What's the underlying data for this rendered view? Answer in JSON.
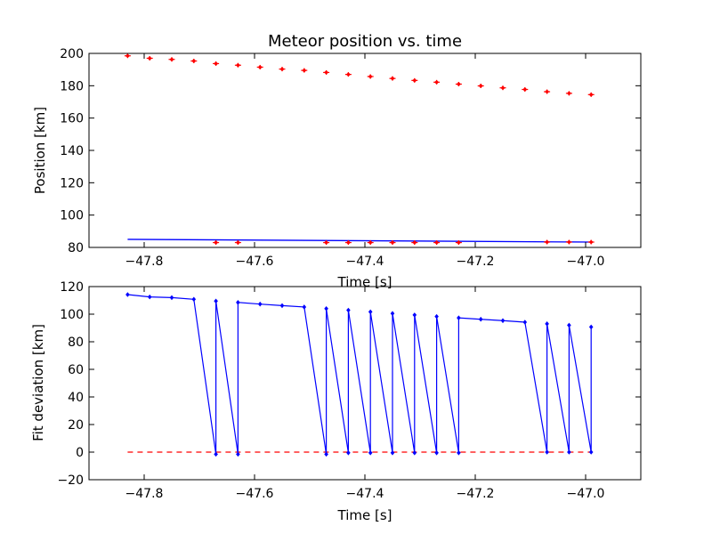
{
  "colors": {
    "observed": "#ff0000",
    "fit": "#0000ff",
    "zero_line": "#ff0000"
  },
  "chart_data": [
    {
      "type": "scatter",
      "title": "Meteor position vs. time",
      "xlabel": "Time [s]",
      "ylabel": "Position [km]",
      "xlim": [
        -47.9,
        -46.9
      ],
      "ylim": [
        80,
        200
      ],
      "xticks": [
        -47.8,
        -47.6,
        -47.4,
        -47.2,
        -47.0
      ],
      "yticks": [
        80,
        100,
        120,
        140,
        160,
        180,
        200
      ],
      "x_tick_labels": [
        "−47.8",
        "−47.6",
        "−47.4",
        "−47.2",
        "−47.0"
      ],
      "y_tick_labels": [
        "80",
        "100",
        "120",
        "140",
        "160",
        "180",
        "200"
      ],
      "grid": false,
      "series": [
        {
          "style": "red errorbar points",
          "x": [
            -47.83,
            -47.79,
            -47.75,
            -47.71,
            -47.67,
            -47.63,
            -47.59,
            -47.55,
            -47.51,
            -47.47,
            -47.43,
            -47.39,
            -47.35,
            -47.31,
            -47.27,
            -47.23,
            -47.19,
            -47.15,
            -47.11,
            -47.07,
            -47.03,
            -46.99
          ],
          "y": [
            198.5,
            197.0,
            196.3,
            195.3,
            193.7,
            192.7,
            191.5,
            190.3,
            189.5,
            188.2,
            187.0,
            185.7,
            184.5,
            183.3,
            182.2,
            181.0,
            179.9,
            178.7,
            177.7,
            176.3,
            175.3,
            174.5
          ]
        },
        {
          "style": "red errorbar points",
          "x": [
            -47.67,
            -47.63,
            -47.47,
            -47.43,
            -47.39,
            -47.35,
            -47.31,
            -47.27,
            -47.23,
            -47.07,
            -47.03,
            -46.99
          ],
          "y": [
            83.0,
            83.0,
            83.0,
            83.0,
            83.0,
            83.0,
            83.0,
            83.0,
            83.0,
            83.3,
            83.3,
            83.3
          ]
        },
        {
          "style": "blue fit line",
          "x": [
            -47.83,
            -46.99
          ],
          "y": [
            85.0,
            83.3
          ]
        }
      ]
    },
    {
      "type": "line",
      "title": "",
      "xlabel": "Time [s]",
      "ylabel": "Fit deviation [km]",
      "xlim": [
        -47.9,
        -46.9
      ],
      "ylim": [
        -20,
        120
      ],
      "xticks": [
        -47.8,
        -47.6,
        -47.4,
        -47.2,
        -47.0
      ],
      "yticks": [
        -20,
        0,
        20,
        40,
        60,
        80,
        100,
        120
      ],
      "x_tick_labels": [
        "−47.8",
        "−47.6",
        "−47.4",
        "−47.2",
        "−47.0"
      ],
      "y_tick_labels": [
        "−20",
        "0",
        "20",
        "40",
        "60",
        "80",
        "100",
        "120"
      ],
      "grid": false,
      "series": [
        {
          "style": "blue line with markers",
          "points": [
            [
              -47.83,
              114.2
            ],
            [
              -47.79,
              112.5
            ],
            [
              -47.75,
              112.0
            ],
            [
              -47.71,
              110.8
            ],
            [
              -47.67,
              -1.5
            ],
            [
              -47.67,
              109.5
            ],
            [
              -47.63,
              -1.5
            ],
            [
              -47.63,
              108.5
            ],
            [
              -47.59,
              107.3
            ],
            [
              -47.55,
              106.2
            ],
            [
              -47.51,
              105.2
            ],
            [
              -47.47,
              -1.5
            ],
            [
              -47.47,
              104.0
            ],
            [
              -47.43,
              -0.5
            ],
            [
              -47.43,
              102.9
            ],
            [
              -47.39,
              -0.5
            ],
            [
              -47.39,
              101.7
            ],
            [
              -47.35,
              -0.5
            ],
            [
              -47.35,
              100.5
            ],
            [
              -47.31,
              -0.5
            ],
            [
              -47.31,
              99.4
            ],
            [
              -47.27,
              -0.5
            ],
            [
              -47.27,
              98.3
            ],
            [
              -47.23,
              -0.5
            ],
            [
              -47.23,
              97.3
            ],
            [
              -47.19,
              96.3
            ],
            [
              -47.15,
              95.3
            ],
            [
              -47.11,
              94.2
            ],
            [
              -47.07,
              0.0
            ],
            [
              -47.07,
              93.0
            ],
            [
              -47.03,
              0.0
            ],
            [
              -47.03,
              92.0
            ],
            [
              -46.99,
              0.0
            ],
            [
              -46.99,
              90.7
            ]
          ]
        },
        {
          "style": "red dashed zero line",
          "x": [
            -47.83,
            -46.99
          ],
          "y": [
            0,
            0
          ]
        }
      ]
    }
  ]
}
